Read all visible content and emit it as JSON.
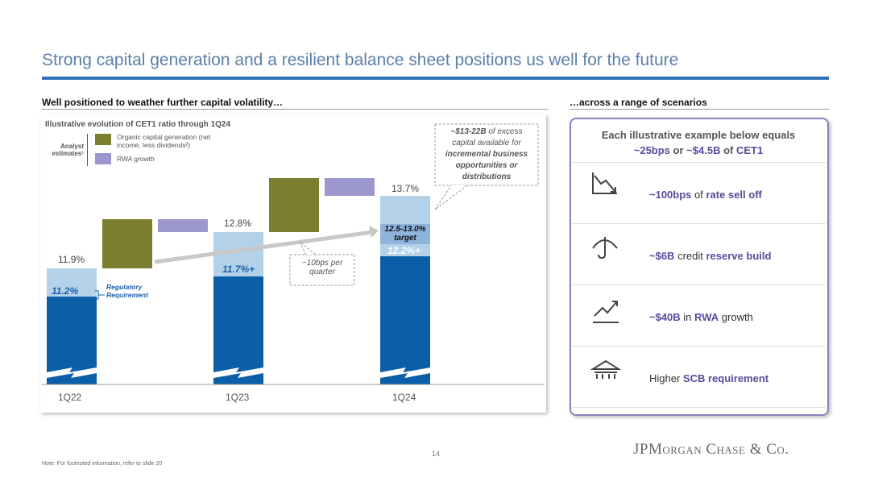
{
  "header": {
    "title": "Strong capital generation and a resilient balance sheet positions us well for the future"
  },
  "left": {
    "heading": "Well positioned to weather further capital volatility…",
    "chart_title": "Illustrative evolution of CET1 ratio through 1Q24",
    "legend_group": "Analyst estimates¹",
    "legend": [
      "Organic capital generation (net income, less dividends²)",
      "RWA growth"
    ],
    "callout": [
      "~$13-22B",
      "of excess capital available for",
      "incremental business opportunities or distributions"
    ],
    "bar_labels": {
      "q22_top": "11.9%",
      "q22_inner": "11.2%",
      "regulatory": "Regulatory Requirement",
      "q23_top": "12.8%",
      "q23_inner": "11.7%+",
      "q24_top": "13.7%",
      "q24_target": "12.5-13.0% target",
      "q24_inner": "12.2%+"
    },
    "pace_note": "~10bps per quarter",
    "categories": [
      "1Q22",
      "1Q23",
      "1Q24"
    ]
  },
  "right": {
    "heading": "…across a range of scenarios",
    "box_heading": [
      "Each illustrative example below equals",
      "~25bps",
      "or",
      "~$4.5B",
      "of",
      "CET1"
    ],
    "scenarios": [
      [
        "~100bps",
        "of",
        "rate sell off"
      ],
      [
        "~$6B",
        "credit",
        "reserve build"
      ],
      [
        "~$40B",
        "in",
        "RWA",
        "growth"
      ],
      [
        "Higher",
        "SCB requirement"
      ]
    ]
  },
  "footer": {
    "page": "14",
    "brand": "JPMorgan Chase & Co.",
    "note": "Note: For footnoted information, refer to slide 20"
  }
}
